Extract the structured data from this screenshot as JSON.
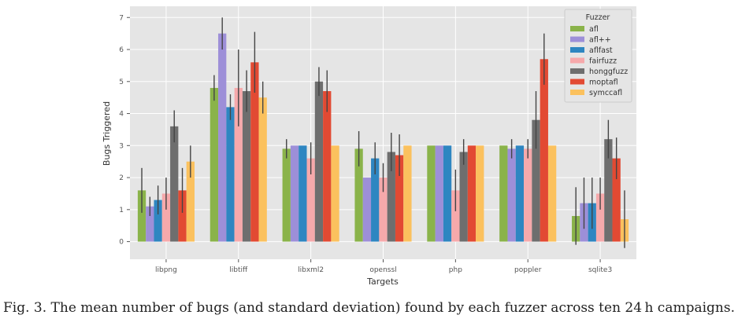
{
  "caption": "Fig. 3.  The mean number of bugs (and standard deviation) found by each fuzzer across ten 24 h campaigns.",
  "chart_data": {
    "type": "bar",
    "xlabel": "Targets",
    "ylabel": "Bugs Triggered",
    "ylim": [
      -0.55,
      7.35
    ],
    "yticks": [
      0,
      1,
      2,
      3,
      4,
      5,
      6,
      7
    ],
    "grid": true,
    "legend_position": "top-right",
    "legend_title": "Fuzzer",
    "categories": [
      "libpng",
      "libtiff",
      "libxml2",
      "openssl",
      "php",
      "poppler",
      "sqlite3"
    ],
    "series": [
      {
        "name": "afl",
        "color": "#8ab34a",
        "values": [
          1.6,
          4.8,
          2.9,
          2.9,
          3.0,
          3.0,
          0.8
        ],
        "std": [
          0.7,
          0.4,
          0.3,
          0.55,
          0.0,
          0.0,
          0.9
        ]
      },
      {
        "name": "afl++",
        "color": "#9d8fd8",
        "values": [
          1.1,
          6.5,
          3.0,
          2.0,
          3.0,
          2.9,
          1.2
        ],
        "std": [
          0.3,
          0.5,
          0.0,
          0.0,
          0.0,
          0.3,
          0.8
        ]
      },
      {
        "name": "aflfast",
        "color": "#2e86c1",
        "values": [
          1.3,
          4.2,
          3.0,
          2.6,
          3.0,
          3.0,
          1.2
        ],
        "std": [
          0.45,
          0.4,
          0.0,
          0.5,
          0.0,
          0.0,
          0.8
        ]
      },
      {
        "name": "fairfuzz",
        "color": "#f6a9ab",
        "values": [
          1.5,
          4.8,
          2.6,
          2.0,
          1.6,
          2.9,
          1.5
        ],
        "std": [
          0.5,
          1.2,
          0.5,
          0.45,
          0.65,
          0.3,
          0.5
        ]
      },
      {
        "name": "honggfuzz",
        "color": "#6e6e6e",
        "values": [
          3.6,
          4.7,
          5.0,
          2.8,
          2.8,
          3.8,
          3.2
        ],
        "std": [
          0.5,
          0.65,
          0.45,
          0.6,
          0.4,
          0.9,
          0.6
        ]
      },
      {
        "name": "moptafl",
        "color": "#e24a33",
        "values": [
          1.6,
          5.6,
          4.7,
          2.7,
          3.0,
          5.7,
          2.6
        ],
        "std": [
          0.7,
          0.95,
          0.65,
          0.65,
          0.0,
          0.8,
          0.65
        ]
      },
      {
        "name": "symccafl",
        "color": "#fbc15e",
        "values": [
          2.5,
          4.5,
          3.0,
          3.0,
          3.0,
          3.0,
          0.7
        ],
        "std": [
          0.5,
          0.5,
          0.0,
          0.0,
          0.0,
          0.0,
          0.9
        ]
      }
    ]
  }
}
